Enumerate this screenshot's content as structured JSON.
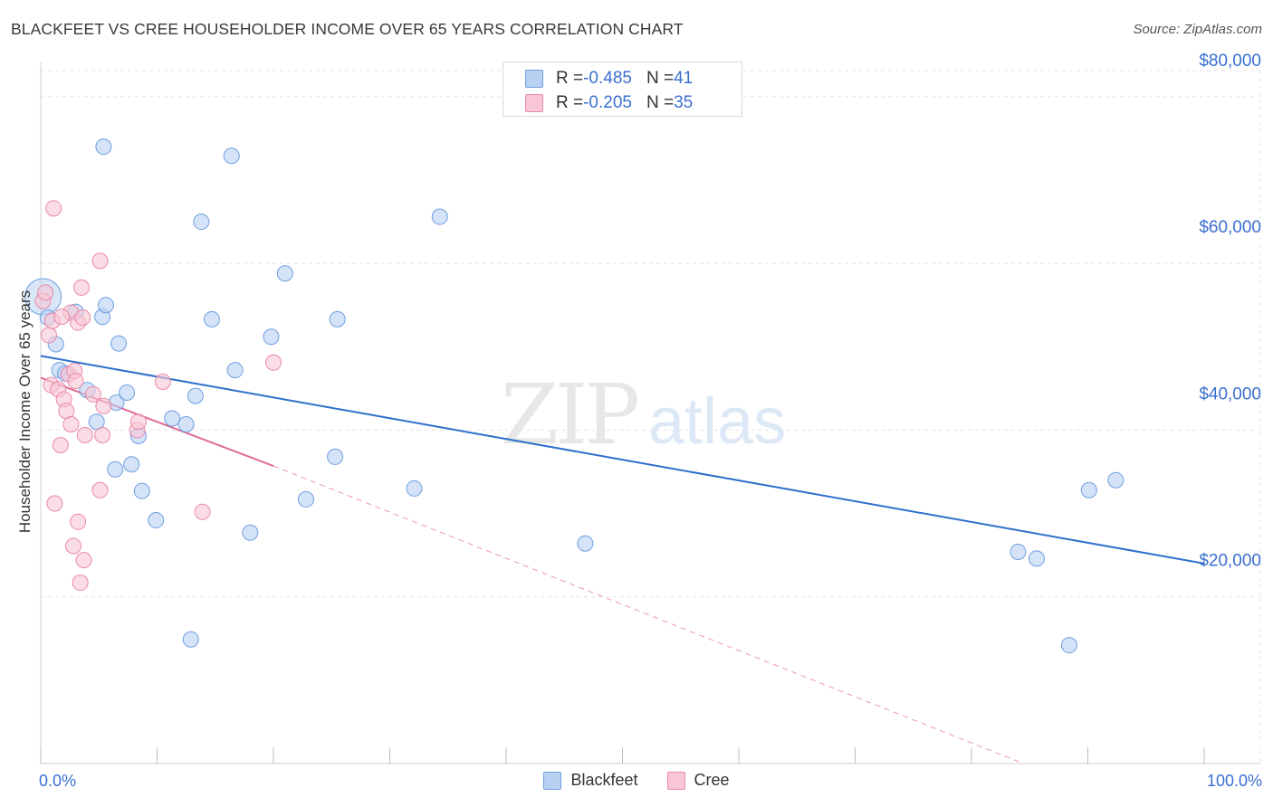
{
  "title": "BLACKFEET VS CREE HOUSEHOLDER INCOME OVER 65 YEARS CORRELATION CHART",
  "source": "Source: ZipAtlas.com",
  "watermark": {
    "zip": "ZIP",
    "atlas": "atlas"
  },
  "legend_top": {
    "rows": [
      {
        "r_label": "R = ",
        "r_value": "-0.485",
        "n_label": "N = ",
        "n_value": "41"
      },
      {
        "r_label": "R = ",
        "r_value": "-0.205",
        "n_label": "N = ",
        "n_value": "35"
      }
    ]
  },
  "x_axis": {
    "min_label": "0.0%",
    "max_label": "100.0%"
  },
  "colors": {
    "blackfeet_fill": "#b8d1f2",
    "blackfeet_stroke": "#6f9fe0",
    "blackfeet_line": "#2f6fcc",
    "cree_fill": "#f8c6d6",
    "cree_stroke": "#e98aa8",
    "cree_line": "#e06a92",
    "axis_label": "#3a6fd0",
    "grid": "#e3e3e3"
  },
  "chart_data": {
    "type": "scatter",
    "title": "BLACKFEET VS CREE HOUSEHOLDER INCOME OVER 65 YEARS CORRELATION CHART",
    "xlabel": "",
    "ylabel": "Householder Income Over 65 years",
    "xlim": [
      0,
      100
    ],
    "ylim": [
      0,
      84000
    ],
    "y_ticks": [
      {
        "value": 20000,
        "label": "$20,000"
      },
      {
        "value": 40000,
        "label": "$40,000"
      },
      {
        "value": 60000,
        "label": "$60,000"
      },
      {
        "value": 80000,
        "label": "$80,000"
      }
    ],
    "x_ticks": [
      0,
      10,
      20,
      30,
      40,
      50,
      60,
      70,
      80,
      90,
      100
    ],
    "grid": true,
    "legend_position": "bottom-center",
    "series": [
      {
        "name": "Blackfeet",
        "r": -0.485,
        "n": 41,
        "points": [
          [
            0.2,
            56000
          ],
          [
            0.6,
            53500
          ],
          [
            1.3,
            50300
          ],
          [
            1.6,
            47200
          ],
          [
            2.1,
            46800
          ],
          [
            3.0,
            54200
          ],
          [
            4.0,
            44800
          ],
          [
            4.8,
            41000
          ],
          [
            5.3,
            53600
          ],
          [
            5.6,
            55000
          ],
          [
            5.4,
            74000
          ],
          [
            6.5,
            43300
          ],
          [
            6.4,
            35300
          ],
          [
            6.7,
            50400
          ],
          [
            7.4,
            44500
          ],
          [
            7.8,
            35900
          ],
          [
            8.4,
            39300
          ],
          [
            8.7,
            32700
          ],
          [
            9.9,
            29200
          ],
          [
            11.3,
            41400
          ],
          [
            12.5,
            40700
          ],
          [
            12.9,
            14900
          ],
          [
            13.3,
            44100
          ],
          [
            13.8,
            65000
          ],
          [
            14.7,
            53300
          ],
          [
            16.4,
            72900
          ],
          [
            16.7,
            47200
          ],
          [
            18.0,
            27700
          ],
          [
            19.8,
            51200
          ],
          [
            21.0,
            58800
          ],
          [
            22.8,
            31700
          ],
          [
            25.3,
            36800
          ],
          [
            25.5,
            53300
          ],
          [
            32.1,
            33000
          ],
          [
            34.3,
            65600
          ],
          [
            46.8,
            26400
          ],
          [
            84.0,
            25400
          ],
          [
            85.6,
            24600
          ],
          [
            88.4,
            14200
          ],
          [
            90.1,
            32800
          ],
          [
            92.4,
            34000
          ]
        ],
        "trend": {
          "x": [
            0,
            100
          ],
          "y": [
            48900,
            24000
          ]
        }
      },
      {
        "name": "Cree",
        "r": -0.205,
        "n": 35,
        "points": [
          [
            0.2,
            55500
          ],
          [
            0.4,
            56500
          ],
          [
            0.7,
            51400
          ],
          [
            0.9,
            45400
          ],
          [
            1.0,
            53100
          ],
          [
            1.1,
            66600
          ],
          [
            1.2,
            31200
          ],
          [
            1.5,
            44900
          ],
          [
            1.7,
            38200
          ],
          [
            2.0,
            43700
          ],
          [
            2.2,
            42300
          ],
          [
            2.4,
            46700
          ],
          [
            2.6,
            40700
          ],
          [
            2.6,
            54100
          ],
          [
            2.8,
            26100
          ],
          [
            2.9,
            47100
          ],
          [
            3.2,
            29000
          ],
          [
            3.2,
            52900
          ],
          [
            3.4,
            21700
          ],
          [
            3.5,
            57100
          ],
          [
            3.6,
            53500
          ],
          [
            3.7,
            24400
          ],
          [
            3.8,
            39400
          ],
          [
            4.5,
            44300
          ],
          [
            5.1,
            60300
          ],
          [
            5.1,
            32800
          ],
          [
            5.3,
            39400
          ],
          [
            5.4,
            42900
          ],
          [
            8.3,
            40000
          ],
          [
            8.4,
            41000
          ],
          [
            10.5,
            45800
          ],
          [
            13.9,
            30200
          ],
          [
            20.0,
            48100
          ],
          [
            1.8,
            53600
          ],
          [
            3.0,
            45900
          ]
        ],
        "trend": {
          "x": [
            0,
            20
          ],
          "y": [
            46300,
            35700
          ]
        },
        "trend_dashed_extension": {
          "x": [
            20,
            100
          ],
          "y": [
            35700,
            -8600
          ]
        }
      }
    ]
  }
}
